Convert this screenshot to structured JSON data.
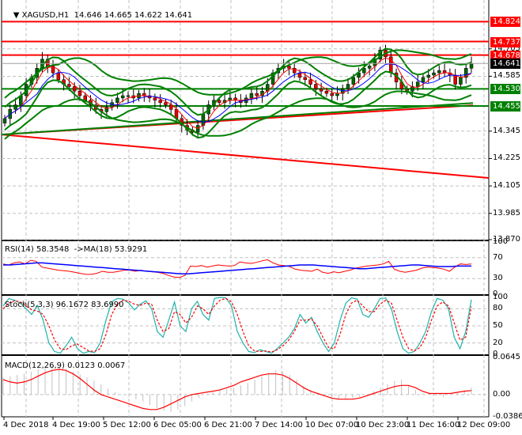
{
  "header": {
    "symbol": "XAGUSD,H1",
    "ohlc": "14.646 14.665 14.622 14.641",
    "dropdown_icon": "triangle-down"
  },
  "colors": {
    "bull": "#006400",
    "bear": "#e00000",
    "level_red": "#ff0000",
    "level_green": "#008000",
    "bollinger": "#008000",
    "ma_fast": "#ff0000",
    "ma_slow": "#0000ff",
    "rsi": "#ff0000",
    "rsi_ma": "#0000ff",
    "stoch_main": "#20b2aa",
    "stoch_signal": "#ff0000",
    "macd_hist": "#c0c0c0",
    "macd_signal": "#ff0000",
    "grid": "#c0c0c0",
    "current_price_bg": "#000000"
  },
  "price_axis": {
    "ticks": [
      "14.705",
      "14.585",
      "14.345",
      "14.225",
      "14.105",
      "13.985",
      "13.870"
    ],
    "tags": [
      {
        "value": "14.824",
        "bg": "#ff0000"
      },
      {
        "value": "14.737",
        "bg": "#ff0000"
      },
      {
        "value": "14.678",
        "bg": "#ff0000"
      },
      {
        "value": "14.641",
        "bg": "#000000"
      },
      {
        "value": "14.530",
        "bg": "#008000"
      },
      {
        "value": "14.455",
        "bg": "#008000"
      }
    ]
  },
  "indicators": {
    "rsi": {
      "label": "RSI(14) 58.3548  ->MA(18) 53.9291",
      "ticks": [
        "100",
        "70",
        "30",
        "0"
      ]
    },
    "stoch": {
      "label": "Stoch(5,3,3) 96.1672 83.6990",
      "ticks": [
        "100",
        "80",
        "50",
        "20",
        "0"
      ]
    },
    "macd": {
      "label": "MACD(12,26,9) 0.0123 0.0067",
      "ticks": [
        "0.0645",
        "0.00",
        "-0.0386"
      ]
    }
  },
  "time_axis": {
    "labels": [
      "4 Dec 2018",
      "4 Dec 19:00",
      "5 Dec 12:00",
      "6 Dec 05:00",
      "6 Dec 21:00",
      "7 Dec 14:00",
      "10 Dec 07:00",
      "10 Dec 23:00",
      "11 Dec 16:00",
      "12 Dec 09:00"
    ]
  },
  "chart_data": [
    {
      "type": "candlestick",
      "title": "XAGUSD,H1",
      "ohlc_last": {
        "open": 14.646,
        "high": 14.665,
        "low": 14.622,
        "close": 14.641
      },
      "ylim": [
        13.87,
        14.86
      ],
      "yticks": [
        14.705,
        14.585,
        14.345,
        14.225,
        14.105,
        13.985,
        13.87
      ],
      "horizontal_levels": [
        {
          "value": 14.824,
          "color": "red"
        },
        {
          "value": 14.737,
          "color": "red"
        },
        {
          "value": 14.678,
          "color": "red"
        },
        {
          "value": 14.53,
          "color": "green"
        },
        {
          "value": 14.455,
          "color": "green"
        }
      ],
      "trendlines": [
        {
          "color": "red",
          "from": [
            0,
            14.33
          ],
          "to": [
            1,
            14.14
          ]
        },
        {
          "color": "red",
          "from": [
            0,
            14.33
          ],
          "to": [
            0.97,
            14.46
          ]
        },
        {
          "color": "green",
          "from": [
            0,
            14.33
          ],
          "to": [
            0.97,
            14.47
          ]
        }
      ],
      "close_series": [
        14.4,
        14.44,
        14.46,
        14.5,
        14.55,
        14.58,
        14.62,
        14.66,
        14.63,
        14.6,
        14.57,
        14.55,
        14.54,
        14.52,
        14.5,
        14.48,
        14.46,
        14.44,
        14.43,
        14.45,
        14.47,
        14.49,
        14.5,
        14.5,
        14.49,
        14.51,
        14.5,
        14.49,
        14.48,
        14.47,
        14.46,
        14.44,
        14.4,
        14.37,
        14.35,
        14.34,
        14.37,
        14.42,
        14.46,
        14.48,
        14.47,
        14.48,
        14.49,
        14.48,
        14.47,
        14.49,
        14.51,
        14.5,
        14.52,
        14.55,
        14.6,
        14.62,
        14.63,
        14.62,
        14.6,
        14.58,
        14.57,
        14.55,
        14.53,
        14.52,
        14.51,
        14.5,
        14.51,
        14.53,
        14.55,
        14.58,
        14.6,
        14.62,
        14.63,
        14.66,
        14.7,
        14.67,
        14.6,
        14.56,
        14.53,
        14.52,
        14.54,
        14.56,
        14.58,
        14.59,
        14.6,
        14.61,
        14.6,
        14.59,
        14.55,
        14.58,
        14.62,
        14.64
      ],
      "time_labels": [
        "4 Dec 2018",
        "4 Dec 19:00",
        "5 Dec 12:00",
        "6 Dec 05:00",
        "6 Dec 21:00",
        "7 Dec 14:00",
        "10 Dec 07:00",
        "10 Dec 23:00",
        "11 Dec 16:00",
        "12 Dec 09:00"
      ]
    },
    {
      "type": "line",
      "title": "RSI(14) 58.3548 ->MA(18) 53.9291",
      "ylim": [
        0,
        100
      ],
      "yticks": [
        100,
        70,
        30,
        0
      ],
      "series": [
        {
          "name": "RSI(14)",
          "last": 58.3548,
          "values": [
            58,
            56,
            60,
            62,
            58,
            65,
            63,
            52,
            50,
            48,
            46,
            45,
            44,
            42,
            40,
            38,
            38,
            40,
            44,
            42,
            42,
            44,
            46,
            46,
            44,
            46,
            44,
            43,
            42,
            40,
            36,
            33,
            32,
            36,
            54,
            53,
            55,
            52,
            54,
            56,
            55,
            54,
            55,
            62,
            60,
            59,
            61,
            64,
            66,
            60,
            56,
            55,
            53,
            48,
            46,
            45,
            44,
            48,
            42,
            40,
            43,
            41,
            44,
            46,
            50,
            52,
            54,
            55,
            56,
            58,
            63,
            48,
            44,
            42,
            44,
            46,
            50,
            52,
            51,
            50,
            48,
            44,
            52,
            58,
            57,
            58
          ]
        },
        {
          "name": "MA(18)",
          "last": 53.9291,
          "values": [
            56,
            56,
            57,
            58,
            59,
            60,
            60,
            59,
            58,
            57,
            56,
            55,
            54,
            53,
            52,
            51,
            50,
            49,
            48,
            47,
            46,
            45,
            44,
            43,
            42,
            41,
            40,
            39,
            39,
            40,
            41,
            42,
            43,
            44,
            45,
            46,
            47,
            48,
            49,
            50,
            51,
            52,
            53,
            54,
            55,
            56,
            56,
            56,
            55,
            54,
            53,
            52,
            51,
            50,
            49,
            49,
            50,
            51,
            52,
            53,
            54,
            55,
            56,
            56,
            55,
            54,
            53,
            53,
            53,
            54,
            54,
            54
          ]
        }
      ]
    },
    {
      "type": "line",
      "title": "Stoch(5,3,3) 96.1672 83.6990",
      "ylim": [
        0,
        100
      ],
      "yticks": [
        100,
        80,
        50,
        20,
        0
      ],
      "series": [
        {
          "name": "%K",
          "last": 96.1672,
          "values": [
            85,
            98,
            95,
            90,
            80,
            70,
            86,
            60,
            20,
            5,
            2,
            15,
            30,
            10,
            2,
            5,
            3,
            20,
            60,
            92,
            98,
            97,
            90,
            78,
            88,
            94,
            80,
            40,
            30,
            60,
            92,
            50,
            40,
            80,
            93,
            70,
            60,
            98,
            100,
            99,
            85,
            40,
            20,
            5,
            3,
            8,
            5,
            2,
            10,
            20,
            30,
            45,
            70,
            55,
            65,
            40,
            20,
            5,
            20,
            60,
            90,
            99,
            97,
            70,
            65,
            80,
            98,
            99,
            80,
            40,
            10,
            2,
            5,
            20,
            40,
            75,
            98,
            95,
            80,
            30,
            10,
            40,
            96
          ]
        },
        {
          "name": "%D",
          "last": 83.699,
          "values": [
            80,
            90,
            94,
            92,
            85,
            78,
            76,
            70,
            50,
            25,
            10,
            8,
            15,
            18,
            12,
            6,
            5,
            10,
            35,
            70,
            88,
            95,
            93,
            88,
            86,
            90,
            88,
            60,
            40,
            45,
            75,
            70,
            55,
            65,
            85,
            80,
            70,
            85,
            95,
            98,
            92,
            70,
            40,
            15,
            6,
            5,
            6,
            4,
            8,
            15,
            25,
            40,
            60,
            60,
            62,
            50,
            30,
            12,
            10,
            35,
            70,
            90,
            95,
            85,
            75,
            75,
            88,
            95,
            90,
            60,
            30,
            10,
            6,
            12,
            30,
            60,
            85,
            92,
            85,
            55,
            25,
            30,
            84
          ]
        }
      ]
    },
    {
      "type": "bar+line",
      "title": "MACD(12,26,9) 0.0123 0.0067",
      "ylim": [
        -0.0386,
        0.0645
      ],
      "yticks": [
        0.0645,
        0.0,
        -0.0386
      ],
      "series": [
        {
          "name": "MACD histogram",
          "last": 0.0123,
          "values": [
            0.03,
            0.032,
            0.034,
            0.036,
            0.04,
            0.044,
            0.048,
            0.05,
            0.048,
            0.045,
            0.04,
            0.035,
            0.03,
            0.024,
            0.018,
            0.01,
            0.004,
            0.0,
            -0.004,
            -0.008,
            -0.012,
            -0.018,
            -0.024,
            -0.028,
            -0.03,
            -0.026,
            -0.02,
            -0.012,
            -0.006,
            0.0,
            0.004,
            0.008,
            0.01,
            0.012,
            0.016,
            0.02,
            0.026,
            0.032,
            0.038,
            0.042,
            0.04,
            0.034,
            0.026,
            0.016,
            0.008,
            0.002,
            -0.002,
            -0.006,
            -0.008,
            -0.008,
            -0.006,
            -0.004,
            0.0,
            0.006,
            0.012,
            0.018,
            0.024,
            0.026,
            0.016,
            0.008,
            0.002,
            0.0,
            -0.002,
            -0.004,
            0.0,
            0.004,
            0.008,
            0.012
          ]
        },
        {
          "name": "Signal",
          "last": 0.0067,
          "values": [
            0.026,
            0.022,
            0.02,
            0.022,
            0.026,
            0.032,
            0.038,
            0.042,
            0.044,
            0.042,
            0.036,
            0.028,
            0.018,
            0.008,
            0.0,
            -0.004,
            -0.008,
            -0.012,
            -0.016,
            -0.02,
            -0.024,
            -0.026,
            -0.026,
            -0.022,
            -0.016,
            -0.01,
            -0.004,
            0.0,
            0.002,
            0.004,
            0.006,
            0.008,
            0.012,
            0.016,
            0.022,
            0.026,
            0.03,
            0.034,
            0.036,
            0.036,
            0.034,
            0.028,
            0.02,
            0.012,
            0.006,
            0.002,
            -0.002,
            -0.006,
            -0.008,
            -0.008,
            -0.008,
            -0.006,
            -0.002,
            0.002,
            0.006,
            0.01,
            0.014,
            0.016,
            0.016,
            0.012,
            0.006,
            0.002,
            0.002,
            0.002,
            0.002,
            0.004,
            0.006,
            0.007
          ]
        }
      ]
    }
  ]
}
